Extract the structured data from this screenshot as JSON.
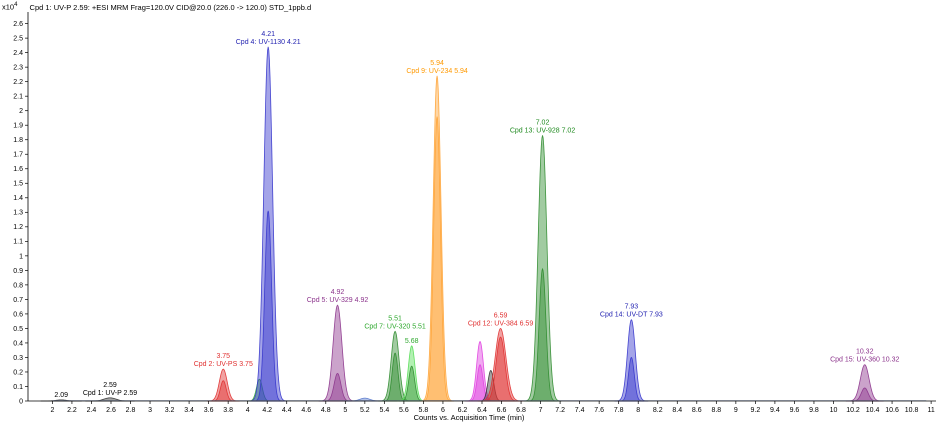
{
  "window": {
    "y_scale_label": "x10",
    "y_scale_exponent": "4",
    "title": "Cpd 1: UV-P 2.59: +ESI MRM Frag=120.0V CID@20.0 (226.0 -> 120.0) STD_1ppb.d"
  },
  "chart_data": {
    "type": "area",
    "xlabel": "Counts vs. Acquisition Time (min)",
    "ylabel": "",
    "xlim": [
      1.75,
      11.05
    ],
    "ylim": [
      0,
      2.68
    ],
    "y_scale_note": "x10^4",
    "x_ticks": [
      "2",
      "2.2",
      "2.4",
      "2.6",
      "2.8",
      "3",
      "3.2",
      "3.4",
      "3.6",
      "3.8",
      "4",
      "4.2",
      "4.4",
      "4.6",
      "4.8",
      "5",
      "5.2",
      "5.4",
      "5.6",
      "5.8",
      "6",
      "6.2",
      "6.4",
      "6.6",
      "6.8",
      "7",
      "7.2",
      "7.4",
      "7.6",
      "7.8",
      "8",
      "8.2",
      "8.4",
      "8.6",
      "8.8",
      "9",
      "9.2",
      "9.4",
      "9.6",
      "9.8",
      "10",
      "10.2",
      "10.4",
      "10.6",
      "10.8",
      "11"
    ],
    "y_ticks": [
      "0",
      "0.1",
      "0.2",
      "0.3",
      "0.4",
      "0.5",
      "0.6",
      "0.7",
      "0.8",
      "0.9",
      "1",
      "1.1",
      "1.2",
      "1.3",
      "1.4",
      "1.5",
      "1.6",
      "1.7",
      "1.8",
      "1.9",
      "2",
      "2.1",
      "2.2",
      "2.3",
      "2.4",
      "2.5",
      "2.6"
    ],
    "grid": false,
    "peaks": [
      {
        "center": 2.09,
        "height": 0.008,
        "width": 0.05,
        "color": "#333333"
      },
      {
        "center": 2.59,
        "height": 0.022,
        "width": 0.06,
        "color": "#333333"
      },
      {
        "center": 3.75,
        "height": 0.22,
        "width": 0.04,
        "color": "#e03030"
      },
      {
        "center": 3.75,
        "height": 0.14,
        "width": 0.03,
        "color": "#e03030"
      },
      {
        "center": 4.12,
        "height": 0.15,
        "width": 0.03,
        "color": "#2ea82e"
      },
      {
        "center": 4.21,
        "height": 2.44,
        "width": 0.045,
        "color": "#3535cc"
      },
      {
        "center": 4.21,
        "height": 1.31,
        "width": 0.035,
        "color": "#3535cc"
      },
      {
        "center": 4.92,
        "height": 0.66,
        "width": 0.045,
        "color": "#8c348c"
      },
      {
        "center": 4.92,
        "height": 0.19,
        "width": 0.035,
        "color": "#8c348c"
      },
      {
        "center": 5.2,
        "height": 0.02,
        "width": 0.05,
        "color": "#5577cc"
      },
      {
        "center": 5.51,
        "height": 0.48,
        "width": 0.04,
        "color": "#2e8b2e"
      },
      {
        "center": 5.51,
        "height": 0.33,
        "width": 0.03,
        "color": "#2e8b2e"
      },
      {
        "center": 5.68,
        "height": 0.38,
        "width": 0.035,
        "color": "#55dd55"
      },
      {
        "center": 5.68,
        "height": 0.24,
        "width": 0.03,
        "color": "#2e8b2e"
      },
      {
        "center": 5.94,
        "height": 2.24,
        "width": 0.04,
        "color": "#ffa335"
      },
      {
        "center": 5.94,
        "height": 1.96,
        "width": 0.035,
        "color": "#ffa335"
      },
      {
        "center": 6.38,
        "height": 0.41,
        "width": 0.035,
        "color": "#e040e0"
      },
      {
        "center": 6.38,
        "height": 0.25,
        "width": 0.03,
        "color": "#e040e0"
      },
      {
        "center": 6.49,
        "height": 0.21,
        "width": 0.03,
        "color": "#333333"
      },
      {
        "center": 6.59,
        "height": 0.5,
        "width": 0.055,
        "color": "#e03030"
      },
      {
        "center": 6.59,
        "height": 0.44,
        "width": 0.045,
        "color": "#e03030"
      },
      {
        "center": 7.02,
        "height": 1.83,
        "width": 0.045,
        "color": "#2e8b2e"
      },
      {
        "center": 7.02,
        "height": 0.91,
        "width": 0.035,
        "color": "#2e8b2e"
      },
      {
        "center": 7.93,
        "height": 0.56,
        "width": 0.04,
        "color": "#3535cc"
      },
      {
        "center": 7.93,
        "height": 0.3,
        "width": 0.03,
        "color": "#3535cc"
      },
      {
        "center": 10.32,
        "height": 0.25,
        "width": 0.045,
        "color": "#8c348c"
      },
      {
        "center": 10.32,
        "height": 0.09,
        "width": 0.035,
        "color": "#8c348c"
      }
    ],
    "annotations": [
      {
        "x": 2.09,
        "y": 0.008,
        "lines": [
          "2.09"
        ],
        "color": "#000000"
      },
      {
        "x": 2.59,
        "y": 0.022,
        "lines": [
          "2.59",
          "Cpd 1: UV-P 2.59"
        ],
        "color": "#000000"
      },
      {
        "x": 3.75,
        "y": 0.22,
        "lines": [
          "3.75",
          "Cpd 2: UV-PS 3.75"
        ],
        "color": "#e03030"
      },
      {
        "x": 4.21,
        "y": 2.44,
        "lines": [
          "4.21",
          "Cpd 4: UV-1130 4.21"
        ],
        "color": "#1f1fb0"
      },
      {
        "x": 4.92,
        "y": 0.66,
        "lines": [
          "4.92",
          "Cpd 5: UV-329 4.92"
        ],
        "color": "#8c348c"
      },
      {
        "x": 5.51,
        "y": 0.48,
        "lines": [
          "5.51",
          "Cpd 7: UV-320 5.51"
        ],
        "color": "#2ea82e"
      },
      {
        "x": 5.68,
        "y": 0.38,
        "lines": [
          "5.68"
        ],
        "color": "#2ea82e"
      },
      {
        "x": 5.94,
        "y": 2.24,
        "lines": [
          "5.94",
          "Cpd 9: UV-234 5.94"
        ],
        "color": "#ff9900"
      },
      {
        "x": 6.59,
        "y": 0.5,
        "lines": [
          "6.59",
          "Cpd 12: UV-384 6.59"
        ],
        "color": "#e03030"
      },
      {
        "x": 7.02,
        "y": 1.83,
        "lines": [
          "7.02",
          "Cpd 13: UV-928 7.02"
        ],
        "color": "#1f8a1f"
      },
      {
        "x": 7.93,
        "y": 0.56,
        "lines": [
          "7.93",
          "Cpd 14: UV-DT 7.93"
        ],
        "color": "#1f1fb0"
      },
      {
        "x": 10.32,
        "y": 0.25,
        "lines": [
          "10.32",
          "Cpd 15: UV-360 10.32"
        ],
        "color": "#8c348c"
      }
    ]
  }
}
